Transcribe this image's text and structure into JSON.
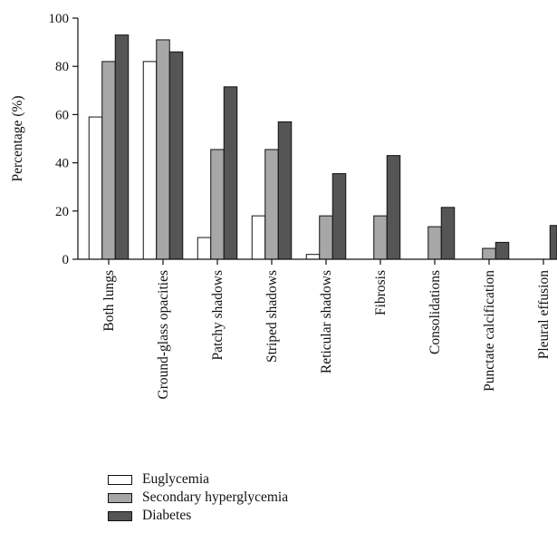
{
  "chart_data": {
    "type": "bar",
    "ylabel": "Percentage (%)",
    "ylim": [
      0,
      100
    ],
    "yticks": [
      0,
      20,
      40,
      60,
      80,
      100
    ],
    "categories": [
      "Both lungs",
      "Ground-glass opacities",
      "Patchy shadows",
      "Striped shadows",
      "Reticular shadows",
      "Fibrosis",
      "Consolidations",
      "Punctate calcification",
      "Pleural effusion"
    ],
    "series": [
      {
        "name": "Euglycemia",
        "color": "#ffffff",
        "values": [
          59,
          82,
          9,
          18,
          2,
          0,
          0,
          0,
          0
        ]
      },
      {
        "name": "Secondary hyperglycemia",
        "color": "#a7a7a7",
        "values": [
          82,
          91,
          45.5,
          45.5,
          18,
          18,
          13.5,
          4.5,
          0
        ]
      },
      {
        "name": "Diabetes",
        "color": "#555555",
        "values": [
          93,
          86,
          71.5,
          57,
          35.5,
          43,
          21.5,
          7,
          14
        ]
      }
    ],
    "legend_position": "bottom-left",
    "grid": false
  }
}
